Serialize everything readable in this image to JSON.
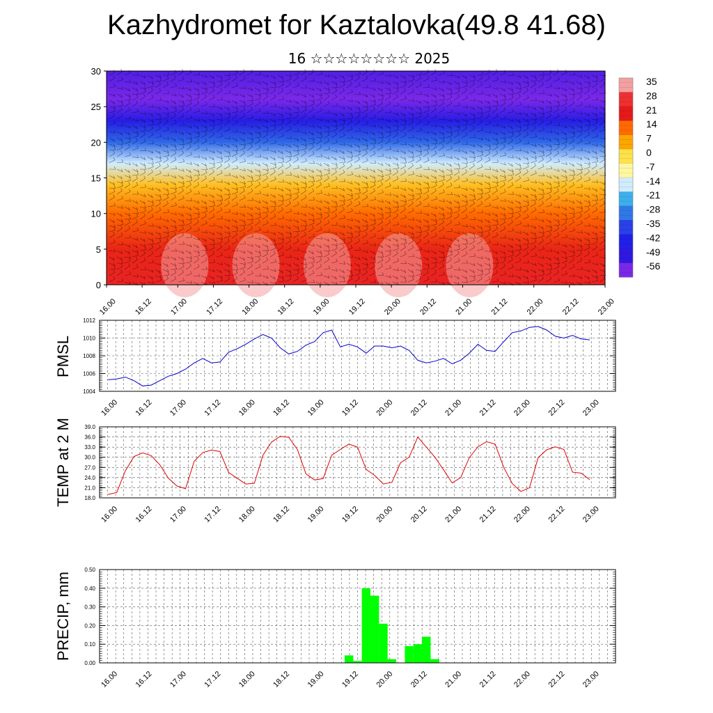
{
  "title": "Kazhydromet for Kaztalovka(49.8 41.68)",
  "subtitle": "16 ☆☆☆☆☆☆☆☆ 2025",
  "time_ticks": [
    "16.00",
    "16.12",
    "17.00",
    "17.12",
    "18.00",
    "18.12",
    "19.00",
    "19.12",
    "20.00",
    "20.12",
    "21.00",
    "21.12",
    "22.00",
    "22.12",
    "23.00"
  ],
  "colorbar": {
    "labels": [
      "35",
      "28",
      "21",
      "14",
      "7",
      "0",
      "-7",
      "-14",
      "-21",
      "-28",
      "-35",
      "-42",
      "-49",
      "-56"
    ],
    "colors": [
      "#f4a0a0",
      "#ee3030",
      "#e61a1a",
      "#ff6a00",
      "#ffa500",
      "#ffe14a",
      "#fff7a0",
      "#d0ecff",
      "#3cb0ea",
      "#3078e8",
      "#2a40e8",
      "#2020e8",
      "#3018e0",
      "#7a28e8"
    ]
  },
  "chart_data": [
    {
      "type": "heatmap",
      "name": "cross_section",
      "x": "time_ticks",
      "ylim": [
        0,
        30
      ],
      "yticks": [
        "0",
        "5",
        "10",
        "15",
        "20",
        "25",
        "30"
      ],
      "z_levels": [
        35,
        28,
        21,
        14,
        7,
        0,
        -7,
        -14,
        -21,
        -28,
        -35,
        -42,
        -49,
        -56
      ],
      "profile": [
        {
          "y": 0,
          "temp": 24
        },
        {
          "y": 5,
          "temp": 20
        },
        {
          "y": 10,
          "temp": 14
        },
        {
          "y": 14,
          "temp": 4
        },
        {
          "y": 17,
          "temp": -14
        },
        {
          "y": 20,
          "temp": -30
        },
        {
          "y": 23,
          "temp": -45
        },
        {
          "y": 26,
          "temp": -56
        },
        {
          "y": 30,
          "temp": -52
        }
      ]
    },
    {
      "type": "line",
      "name": "pmsl",
      "ylabel": "PMSL",
      "ylim": [
        1004,
        1012
      ],
      "yticks": [
        "1012",
        "1010",
        "1008",
        "1006",
        "1004"
      ],
      "color": "#0000cc",
      "values": [
        1005.3,
        1005.4,
        1005.6,
        1005.2,
        1004.6,
        1004.7,
        1005.2,
        1005.7,
        1006.0,
        1006.5,
        1007.2,
        1007.7,
        1007.2,
        1007.3,
        1008.4,
        1008.8,
        1009.3,
        1009.9,
        1010.4,
        1010.0,
        1008.9,
        1008.2,
        1008.5,
        1009.2,
        1009.6,
        1010.6,
        1010.9,
        1009.0,
        1009.3,
        1009.0,
        1008.3,
        1009.1,
        1009.1,
        1008.9,
        1009.1,
        1008.6,
        1007.5,
        1007.2,
        1007.4,
        1007.7,
        1007.1,
        1007.5,
        1008.3,
        1009.3,
        1008.6,
        1008.5,
        1009.6,
        1010.6,
        1010.8,
        1011.2,
        1011.3,
        1010.9,
        1010.2,
        1010.0,
        1010.3,
        1009.9,
        1009.8
      ]
    },
    {
      "type": "line",
      "name": "temp2m",
      "ylabel": "TEMP at 2 M",
      "ylim": [
        18,
        39
      ],
      "yticks": [
        "39.0",
        "36.0",
        "33.0",
        "30.0",
        "27.0",
        "24.0",
        "21.0",
        "18.0"
      ],
      "color": "#e00000",
      "values": [
        19.0,
        19.6,
        26.0,
        30.2,
        31.3,
        30.5,
        27.8,
        23.8,
        21.5,
        20.7,
        28.8,
        31.4,
        32.1,
        31.7,
        25.5,
        23.8,
        22.1,
        22.3,
        30.6,
        34.5,
        36.2,
        35.9,
        32.3,
        25.1,
        23.3,
        23.7,
        30.6,
        32.3,
        33.9,
        33.0,
        26.4,
        24.6,
        22.1,
        22.6,
        28.4,
        30.0,
        36.0,
        33.0,
        30.0,
        26.3,
        22.4,
        24.0,
        29.9,
        33.1,
        34.6,
        33.9,
        27.0,
        22.2,
        19.9,
        21.0,
        29.9,
        32.2,
        33.1,
        32.3,
        25.6,
        25.3,
        23.4
      ]
    },
    {
      "type": "bar",
      "name": "precip",
      "ylabel": "PRECIP, mm",
      "ylim": [
        0,
        0.5
      ],
      "yticks": [
        "0.50",
        "0.40",
        "0.30",
        "0.20",
        "0.10",
        "0.00"
      ],
      "color": "#00ff00",
      "values": [
        0,
        0,
        0,
        0,
        0,
        0,
        0,
        0,
        0,
        0,
        0,
        0,
        0,
        0,
        0,
        0,
        0,
        0,
        0,
        0,
        0,
        0,
        0,
        0,
        0,
        0,
        0,
        0,
        0.04,
        0.01,
        0.4,
        0.36,
        0.21,
        0.02,
        0,
        0.09,
        0.1,
        0.14,
        0.02,
        0,
        0,
        0,
        0,
        0,
        0,
        0,
        0,
        0,
        0,
        0,
        0,
        0,
        0,
        0,
        0,
        0,
        0
      ]
    }
  ]
}
